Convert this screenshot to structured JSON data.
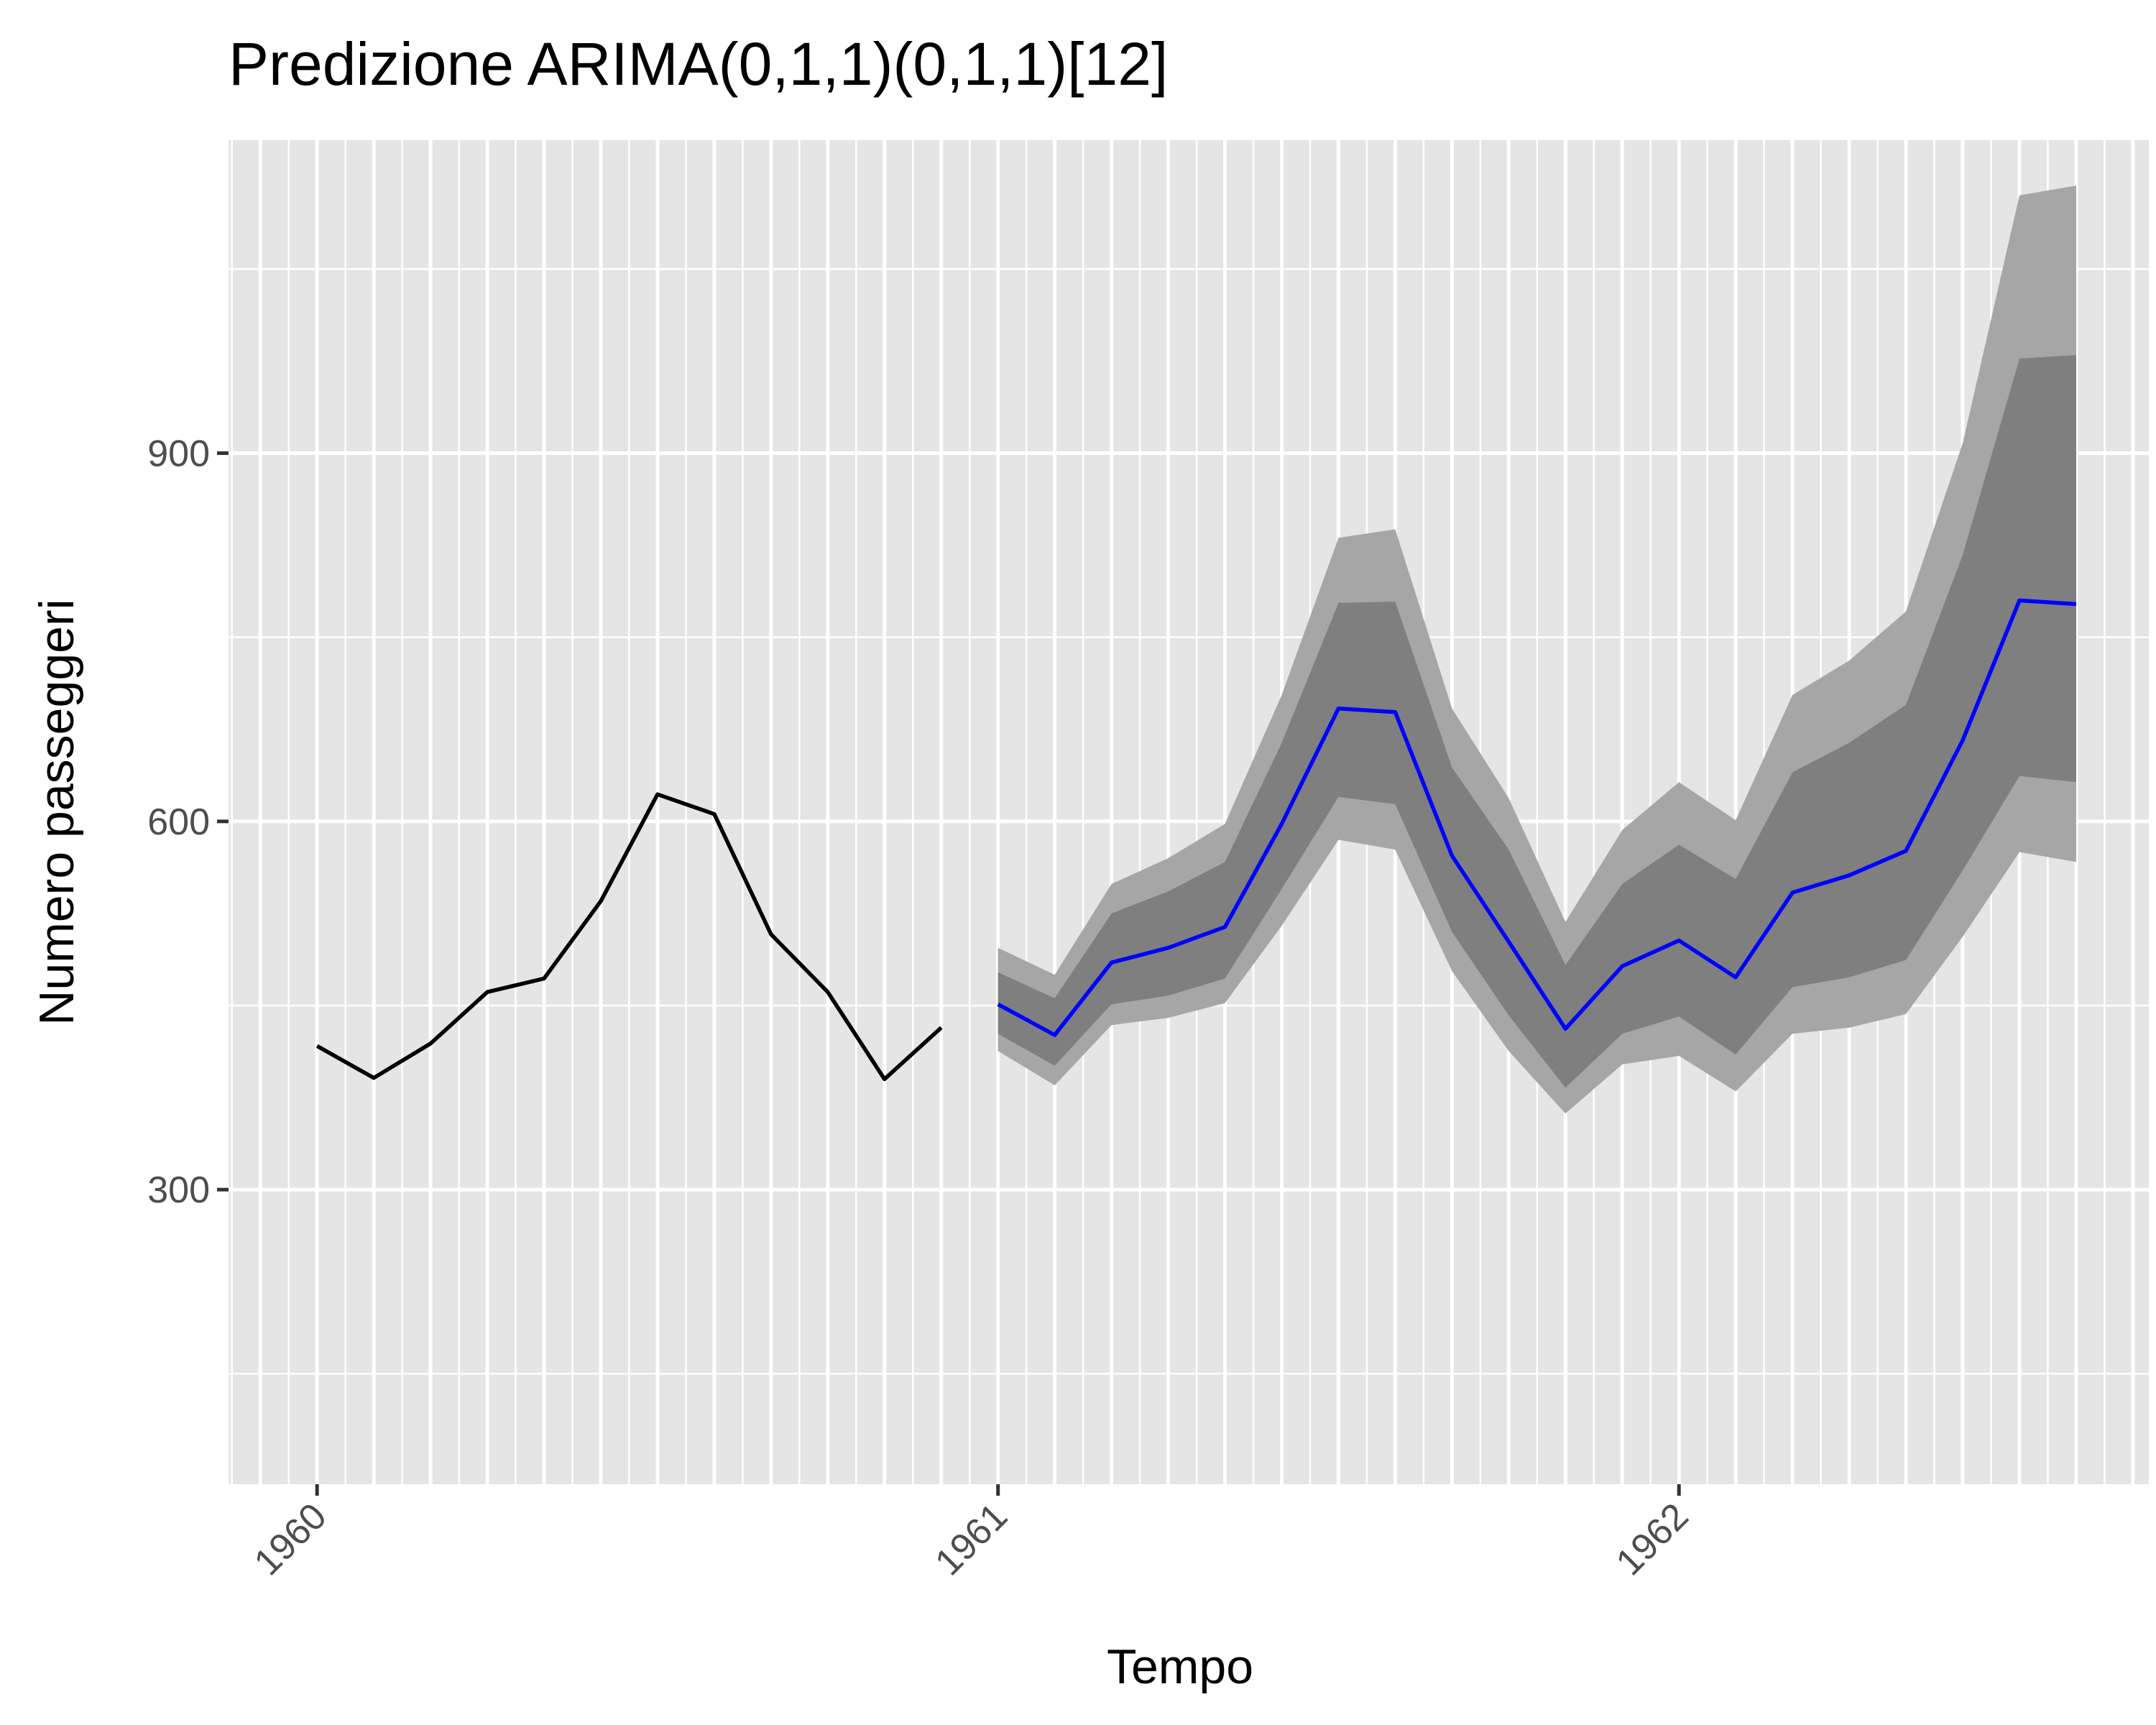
{
  "chart_data": {
    "type": "line",
    "title": "Predizione ARIMA(0,1,1)(0,1,1)[12]",
    "xlabel": "Tempo",
    "ylabel": "Numero passeggeri",
    "xlim": [
      1959.87,
      1962.69
    ],
    "ylim": [
      60,
      1155
    ],
    "x_ticks": [
      {
        "value": 1960,
        "label": "1960"
      },
      {
        "value": 1961,
        "label": "1961"
      },
      {
        "value": 1962,
        "label": "1962"
      }
    ],
    "y_ticks": [
      {
        "value": 300,
        "label": "300"
      },
      {
        "value": 600,
        "label": "600"
      },
      {
        "value": 900,
        "label": "900"
      }
    ],
    "grid": true,
    "legend": "none",
    "colors": {
      "panel": "#e5e5e5",
      "grid": "#ffffff",
      "observed": "#000000",
      "forecast": "#0000ff",
      "band80": "#7f7f7f",
      "band95": "#a6a6a6"
    },
    "series": [
      {
        "role": "observed",
        "x": [
          1960.0,
          1960.0833,
          1960.1667,
          1960.25,
          1960.3333,
          1960.4167,
          1960.5,
          1960.5833,
          1960.6667,
          1960.75,
          1960.8333,
          1960.9167
        ],
        "values": [
          417,
          391,
          419,
          461,
          472,
          535,
          622,
          606,
          508,
          461,
          390,
          432
        ]
      },
      {
        "role": "forecast",
        "x": [
          1961.0,
          1961.0833,
          1961.1667,
          1961.25,
          1961.3333,
          1961.4167,
          1961.5,
          1961.5833,
          1961.6667,
          1961.75,
          1961.8333,
          1961.9167,
          1962.0,
          1962.0833,
          1962.1667,
          1962.25,
          1962.3333,
          1962.4167,
          1962.5,
          1962.5833
        ],
        "values": [
          451,
          426,
          485,
          497,
          514,
          598,
          692,
          689,
          572,
          502,
          431,
          482,
          503,
          473,
          542,
          556,
          576,
          666,
          780,
          777
        ],
        "lo80": [
          427,
          401,
          451,
          458,
          472,
          545,
          620,
          614,
          510,
          442,
          383,
          427,
          441,
          410,
          465,
          473,
          487,
          560,
          637,
          632
        ],
        "hi80": [
          477,
          456,
          525,
          543,
          567,
          664,
          778,
          779,
          644,
          577,
          483,
          549,
          581,
          553,
          640,
          664,
          695,
          817,
          977,
          980
        ],
        "lo95": [
          413,
          385,
          434,
          440,
          452,
          515,
          585,
          577,
          478,
          413,
          362,
          402,
          409,
          380,
          427,
          432,
          443,
          506,
          575,
          567
        ],
        "hi95": [
          497,
          475,
          549,
          570,
          598,
          703,
          831,
          838,
          692,
          619,
          518,
          593,
          632,
          601,
          703,
          731,
          771,
          908,
          1110,
          1118
        ]
      }
    ]
  }
}
